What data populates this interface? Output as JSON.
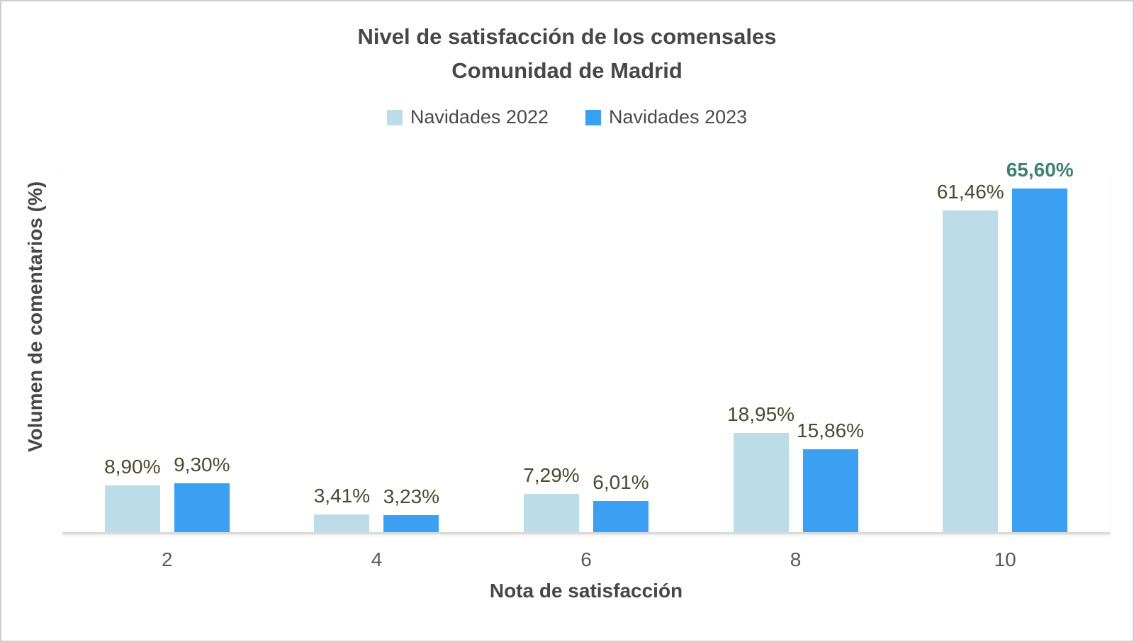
{
  "frame": {
    "background": "#ffffff",
    "border_color": "#cfcfcf"
  },
  "chart_data": {
    "type": "bar",
    "title_line1": "Nivel de satisfacción de los comensales",
    "title_line2": "Comunidad de Madrid",
    "xlabel": "Nota de satisfacción",
    "ylabel": "Volumen de comentarios (%)",
    "categories": [
      "2",
      "4",
      "6",
      "8",
      "10"
    ],
    "series": [
      {
        "name": "Navidades 2022",
        "color": "#bcdde8",
        "values": [
          8.9,
          3.41,
          7.29,
          18.95,
          61.46
        ],
        "labels": [
          "8,90%",
          "3,41%",
          "7,29%",
          "18,95%",
          "61,46%"
        ]
      },
      {
        "name": "Navidades 2023",
        "color": "#3ba0f2",
        "values": [
          9.3,
          3.23,
          6.01,
          15.86,
          65.6
        ],
        "labels": [
          "9,30%",
          "3,23%",
          "6,01%",
          "15,86%",
          "65,60%"
        ]
      }
    ],
    "highlight": {
      "series": 1,
      "index": 4,
      "color": "#3f8170",
      "bold": true
    },
    "label_color": "#4c4833",
    "ylim": [
      0,
      70
    ],
    "grid": false,
    "legend_position": "top",
    "axis_line_color": "#d9d9d9"
  }
}
